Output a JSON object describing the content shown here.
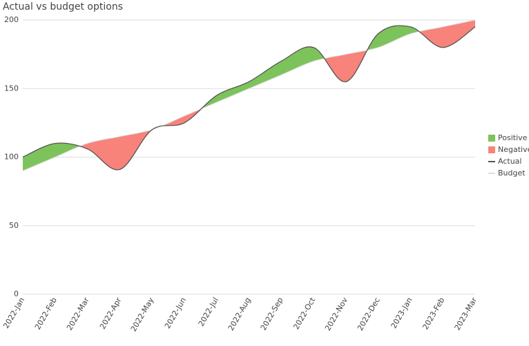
{
  "chart_data": {
    "type": "difference-area",
    "title": "Actual vs budget options",
    "categories": [
      "2022-Jan",
      "2022-Feb",
      "2022-Mar",
      "2022-Apr",
      "2022-May",
      "2022-Jun",
      "2022-Jul",
      "2022-Aug",
      "2022-Sep",
      "2022-Oct",
      "2022-Nov",
      "2022-Dec",
      "2023-Jan",
      "2023-Feb",
      "2023-Mar"
    ],
    "series": [
      {
        "name": "Actual",
        "color": "#555555",
        "values": [
          100,
          110,
          106,
          91,
          120,
          125,
          145,
          155,
          170,
          180,
          155,
          190,
          195,
          180,
          195
        ]
      },
      {
        "name": "Budget",
        "color": "#dddddd",
        "values": [
          90,
          100,
          110,
          115,
          120,
          130,
          140,
          150,
          160,
          170,
          175,
          180,
          190,
          195,
          200
        ]
      }
    ],
    "fills": [
      {
        "name": "Positive",
        "color": "#7dc35b"
      },
      {
        "name": "Negative",
        "color": "#f8837b"
      }
    ],
    "ylim": [
      0,
      200
    ],
    "yticks": [
      0,
      50,
      100,
      150,
      200
    ],
    "grid": true
  }
}
